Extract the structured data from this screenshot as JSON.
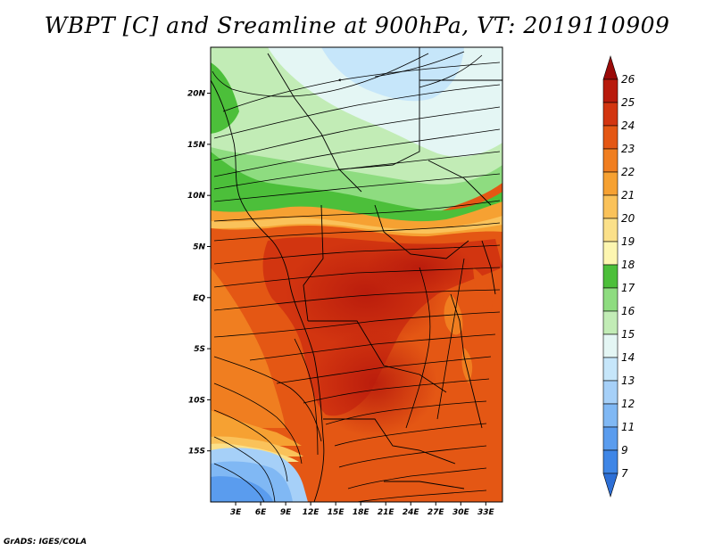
{
  "title": "WBPT [C] and Sreamline at 900hPa, VT: 2019110909",
  "footer": "GrADS: IGES/COLA",
  "map": {
    "variable": "Wet-bulb potential temperature",
    "units": "C",
    "level": "900hPa",
    "valid_time": "2019110909",
    "lon_range": [
      0,
      35
    ],
    "lat_range": [
      -20,
      24.5
    ],
    "lat_ticks": [
      {
        "value": 20,
        "label": "20N"
      },
      {
        "value": 15,
        "label": "15N"
      },
      {
        "value": 10,
        "label": "10N"
      },
      {
        "value": 5,
        "label": "5N"
      },
      {
        "value": 0,
        "label": "EQ"
      },
      {
        "value": -5,
        "label": "5S"
      },
      {
        "value": -10,
        "label": "10S"
      },
      {
        "value": -15,
        "label": "15S"
      }
    ],
    "lon_ticks": [
      {
        "value": 3,
        "label": "3E"
      },
      {
        "value": 6,
        "label": "6E"
      },
      {
        "value": 9,
        "label": "9E"
      },
      {
        "value": 12,
        "label": "12E"
      },
      {
        "value": 15,
        "label": "15E"
      },
      {
        "value": 18,
        "label": "18E"
      },
      {
        "value": 21,
        "label": "21E"
      },
      {
        "value": 24,
        "label": "24E"
      },
      {
        "value": 27,
        "label": "27E"
      },
      {
        "value": 30,
        "label": "30E"
      },
      {
        "value": 33,
        "label": "33E"
      }
    ]
  },
  "colorbar": {
    "levels": [
      "7",
      "9",
      "11",
      "12",
      "13",
      "14",
      "15",
      "16",
      "17",
      "18",
      "19",
      "20",
      "21",
      "22",
      "23",
      "24",
      "25",
      "26"
    ],
    "colors": [
      "#2d6fd6",
      "#3f86e6",
      "#5a9cee",
      "#80b8f4",
      "#a6d0f8",
      "#c6e6fa",
      "#e4f6f4",
      "#c2ecb6",
      "#8edc80",
      "#4cbf3a",
      "#fdf6b0",
      "#fbe089",
      "#fac25a",
      "#f6a132",
      "#f07e20",
      "#e45714",
      "#d23510",
      "#b81a0c",
      "#9a0a08"
    ]
  }
}
